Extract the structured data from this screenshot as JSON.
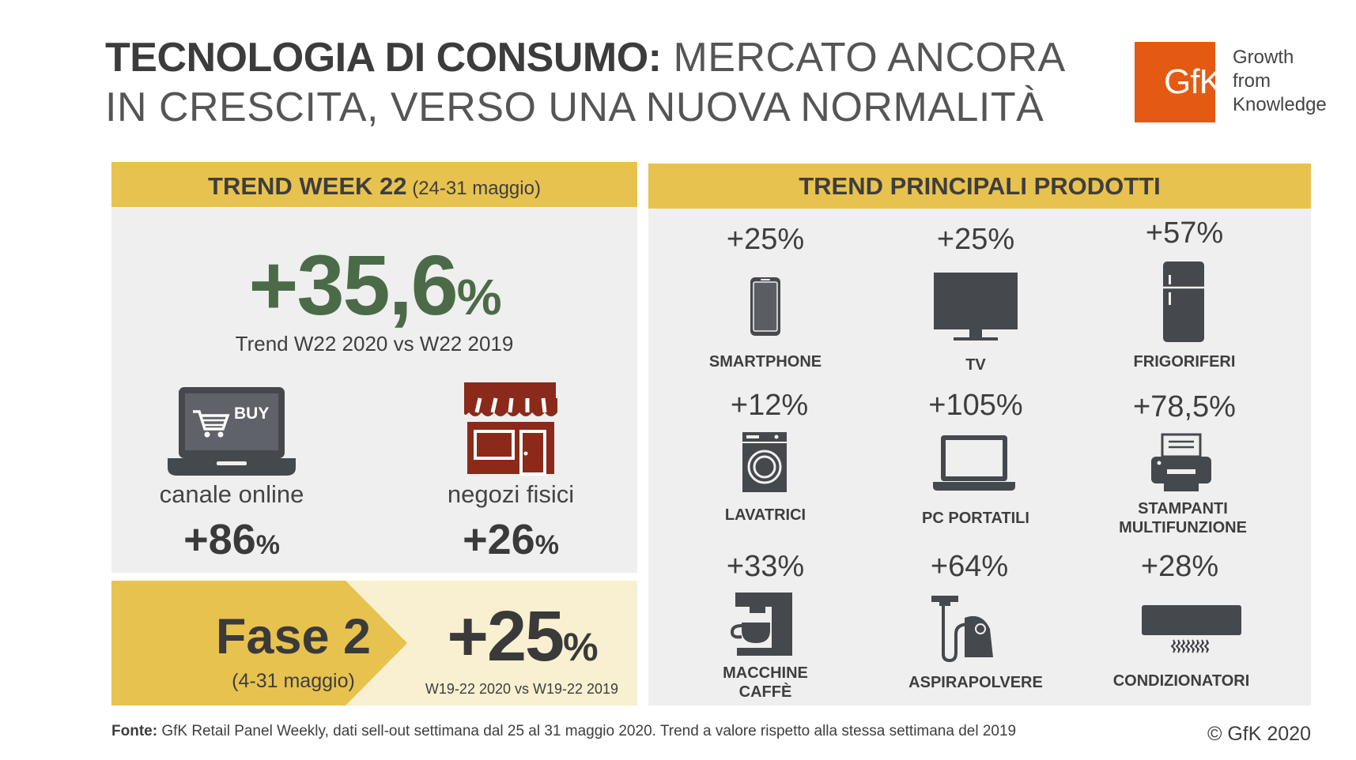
{
  "header": {
    "title_bold": "TECNOLOGIA DI CONSUMO:",
    "title_line1_rest": " MERCATO ANCORA",
    "title_line2": "IN CRESCITA, VERSO UNA NUOVA NORMALITÀ",
    "logo_text": "GfK",
    "tagline": [
      "Growth",
      "from",
      "Knowledge"
    ]
  },
  "colors": {
    "yellow": "#e8c24f",
    "green": "#4b6b48",
    "orange": "#e55a13",
    "icon_dark": "#45484d",
    "store_red": "#8b2a1a"
  },
  "left_panel": {
    "bar_bold": "TREND WEEK 22",
    "bar_normal": " (24-31 maggio)",
    "main_value": "+35,6",
    "main_unit": "%",
    "main_sub": "Trend W22 2020 vs W22 2019",
    "online": {
      "label": "canale online",
      "value": "+86",
      "unit": "%",
      "buy_label": "BUY"
    },
    "stores": {
      "label": "negozi fisici",
      "value": "+26",
      "unit": "%"
    },
    "fase": {
      "title": "Fase 2",
      "dates": "(4-31 maggio)",
      "value": "+25",
      "unit": "%",
      "comparison": "W19-22 2020 vs W19-22 2019"
    }
  },
  "right_panel": {
    "bar": "TREND PRINCIPALI PRODOTTI",
    "products": [
      {
        "name": "SMARTPHONE",
        "value": "+25%",
        "icon": "smartphone-icon"
      },
      {
        "name": "TV",
        "value": "+25%",
        "icon": "tv-icon"
      },
      {
        "name": "FRIGORIFERI",
        "value": "+57%",
        "icon": "fridge-icon"
      },
      {
        "name": "LAVATRICI",
        "value": "+12%",
        "icon": "washing-machine-icon"
      },
      {
        "name": "PC PORTATILI",
        "value": "+105%",
        "icon": "laptop-icon"
      },
      {
        "name_line1": "STAMPANTI",
        "name_line2": "MULTIFUNZIONE",
        "value": "+78,5%",
        "icon": "printer-icon"
      },
      {
        "name_line1": "MACCHINE",
        "name_line2": "CAFFÈ",
        "value": "+33%",
        "icon": "coffee-machine-icon"
      },
      {
        "name": "ASPIRAPOLVERE",
        "value": "+64%",
        "icon": "vacuum-cleaner-icon"
      },
      {
        "name": "CONDIZIONATORI",
        "value": "+28%",
        "icon": "air-conditioner-icon"
      }
    ]
  },
  "footer": {
    "source_label": "Fonte:",
    "source_text": " GfK Retail Panel Weekly, dati sell-out settimana dal 25 al 31 maggio 2020. Trend a valore rispetto alla stessa settimana del 2019",
    "copyright": "© GfK 2020"
  }
}
